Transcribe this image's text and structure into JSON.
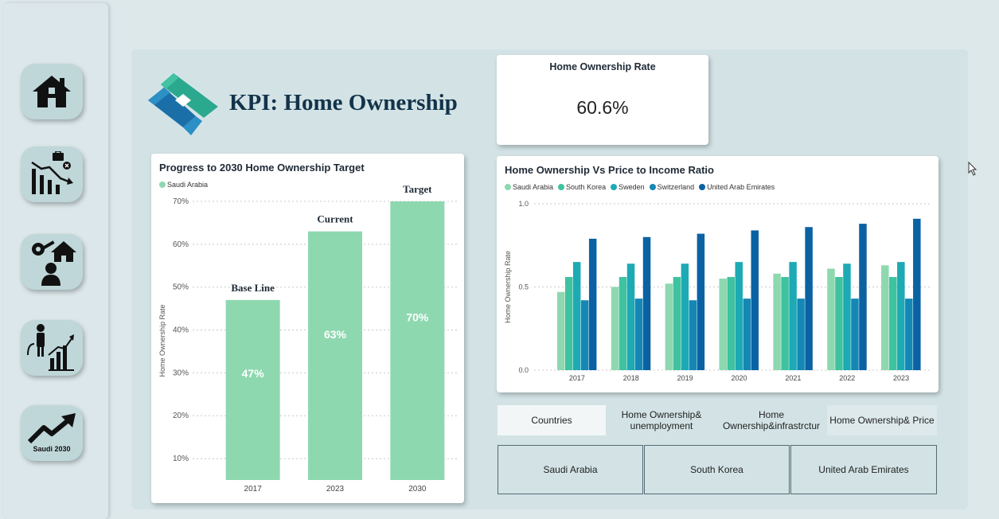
{
  "sidebar": {
    "items": [
      {
        "icon": "home-icon"
      },
      {
        "icon": "unemployment-chart-icon"
      },
      {
        "icon": "key-house-person-icon"
      },
      {
        "icon": "person-growth-chart-icon"
      },
      {
        "icon": "trend-up-arrow-icon",
        "caption": "Saudi 2030"
      }
    ]
  },
  "header": {
    "title": "KPI: Home Ownership"
  },
  "rate_card": {
    "title": "Home Ownership Rate",
    "value": "60.6%"
  },
  "progress_chart": {
    "title": "Progress to 2030 Home Ownership Target",
    "legend": [
      {
        "name": "Saudi Arabia",
        "color": "#8ed8b0"
      }
    ],
    "ylabel": "Home Ownership Rate",
    "yticks": [
      "10%",
      "20%",
      "30%",
      "40%",
      "50%",
      "60%",
      "70%"
    ]
  },
  "income_chart": {
    "title": "Home Ownership Vs Price to Income Ratio",
    "ylabel": "Home Ownership Rate",
    "yticks": [
      "0.0",
      "0.5",
      "1.0"
    ]
  },
  "tabs": [
    {
      "label": "Countries",
      "active": true
    },
    {
      "label": "Home Ownership& unemployment",
      "active": false
    },
    {
      "label": "Home Ownership&infrastrctur",
      "active": false
    },
    {
      "label": "Home Ownership& Price",
      "active": false
    }
  ],
  "slicers": [
    "Saudi Arabia",
    "South Korea",
    "United Arab Emirates"
  ],
  "chart_data": [
    {
      "type": "bar",
      "title": "Progress to 2030 Home Ownership Target",
      "categories": [
        "2017",
        "2023",
        "2030"
      ],
      "values": [
        47,
        63,
        70
      ],
      "value_labels": [
        "47%",
        "63%",
        "70%"
      ],
      "annotations": [
        "Base Line",
        "Current",
        "Target"
      ],
      "series": [
        {
          "name": "Saudi Arabia",
          "values": [
            47,
            63,
            70
          ]
        }
      ],
      "ylabel": "Home Ownership Rate",
      "ylim": [
        5,
        70
      ],
      "grid": true,
      "legend": "top-left",
      "color": "#8ed8b0"
    },
    {
      "type": "bar",
      "title": "Home Ownership Vs Price to Income Ratio",
      "categories": [
        "2017",
        "2018",
        "2019",
        "2020",
        "2021",
        "2022",
        "2023"
      ],
      "series": [
        {
          "name": "Saudi Arabia",
          "color": "#8ed8b0",
          "values": [
            0.47,
            0.5,
            0.52,
            0.55,
            0.58,
            0.61,
            0.63
          ]
        },
        {
          "name": "South Korea",
          "color": "#3fc2a0",
          "values": [
            0.56,
            0.56,
            0.56,
            0.56,
            0.56,
            0.56,
            0.56
          ]
        },
        {
          "name": "Sweden",
          "color": "#1daab4",
          "values": [
            0.65,
            0.64,
            0.64,
            0.65,
            0.65,
            0.64,
            0.65
          ]
        },
        {
          "name": "Switzerland",
          "color": "#1587b5",
          "values": [
            0.42,
            0.43,
            0.42,
            0.43,
            0.43,
            0.43,
            0.43
          ]
        },
        {
          "name": "United Arab Emirates",
          "color": "#0a62a3",
          "values": [
            0.79,
            0.8,
            0.82,
            0.84,
            0.86,
            0.88,
            0.91
          ]
        }
      ],
      "ylabel": "Home Ownership Rate",
      "ylim": [
        0,
        1.0
      ],
      "grid": true,
      "legend": "top-left"
    }
  ]
}
